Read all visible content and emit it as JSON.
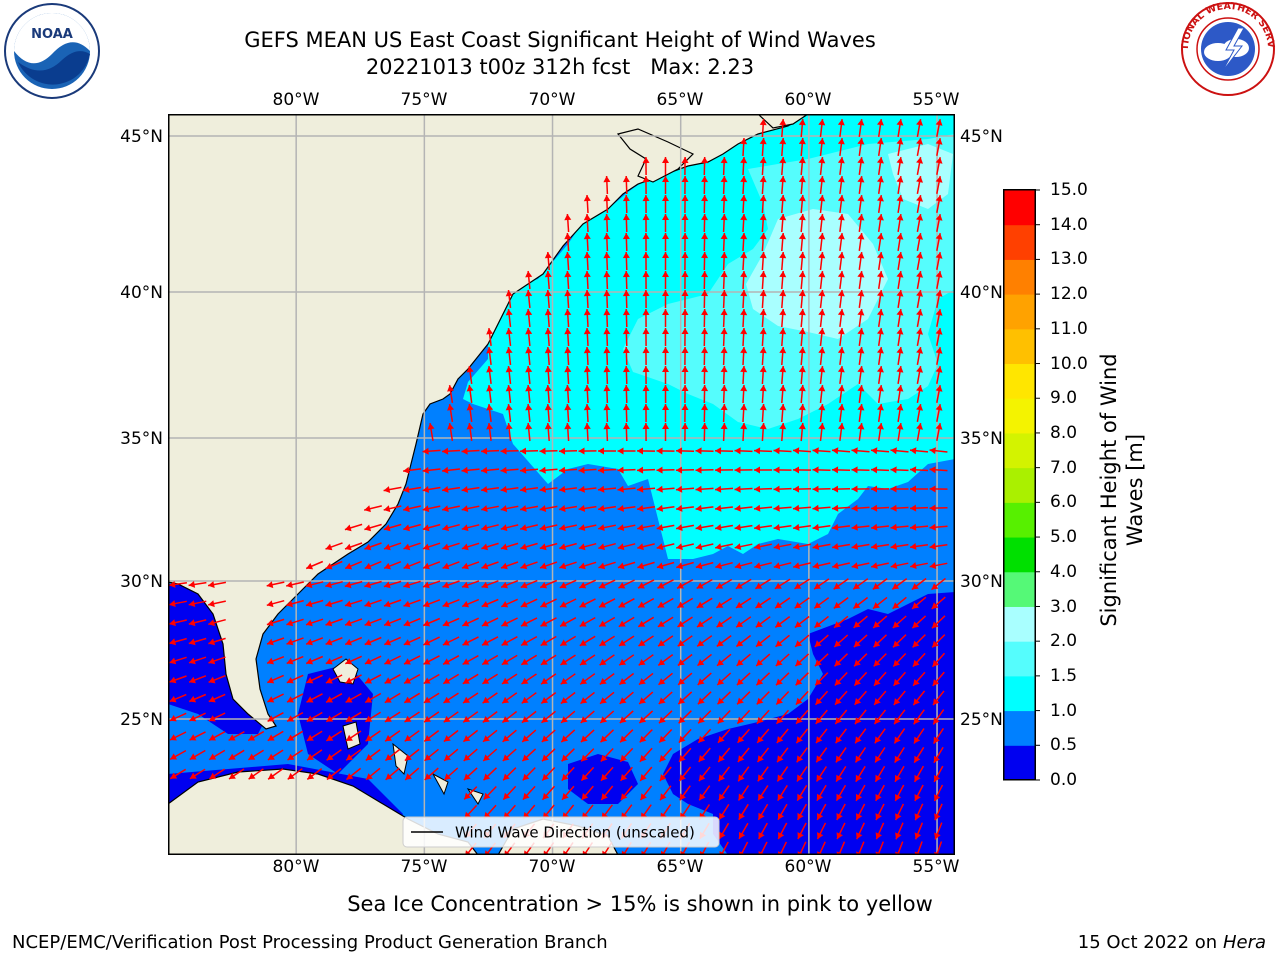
{
  "title": {
    "line1": "GEFS MEAN US East Coast Significant Height of Wind Waves",
    "line2": "20221013 t00z 312h fcst   Max: 2.23"
  },
  "logos": {
    "left": {
      "icon": "noaa-logo",
      "text": "NOAA"
    },
    "right": {
      "icon": "nws-logo",
      "text": "NATIONAL WEATHER SERVICE"
    }
  },
  "map": {
    "lon_ticks": [
      "80°W",
      "75°W",
      "70°W",
      "65°W",
      "60°W",
      "55°W"
    ],
    "lat_ticks": [
      "45°N",
      "40°N",
      "35°N",
      "30°N",
      "25°N"
    ],
    "lon_values": [
      -80,
      -75,
      -70,
      -65,
      -60,
      -55
    ],
    "lat_values": [
      45,
      40,
      35,
      30,
      25
    ],
    "lon_range": [
      -85,
      -54.3
    ],
    "lat_range": [
      20.4,
      46
    ],
    "legend_label": "Wind Wave Direction (unscaled)",
    "colors": {
      "land": "#efeedc",
      "ocean_0_05": "#0000f0",
      "ocean_05_10": "#0080ff",
      "ocean_10_15": "#00ffff",
      "ocean_15_20": "#55fdfd",
      "ocean_20_30": "#a9ffff",
      "arrow": "#ff0000",
      "grid": "#b4b4b4"
    }
  },
  "colorbar": {
    "label": "Significant Height of Wind Waves [m]",
    "ticks": [
      "0.0",
      "0.5",
      "1.0",
      "1.5",
      "2.0",
      "3.0",
      "4.0",
      "5.0",
      "6.0",
      "7.0",
      "8.0",
      "9.0",
      "10.0",
      "11.0",
      "12.0",
      "13.0",
      "14.0",
      "15.0"
    ],
    "colors": [
      "#0000f0",
      "#0080ff",
      "#00ffff",
      "#55fdfd",
      "#a9ffff",
      "#55f977",
      "#00e000",
      "#57f000",
      "#aaf000",
      "#d3f300",
      "#f4f300",
      "#ffe600",
      "#ffc000",
      "#ffa200",
      "#ff8000",
      "#ff4000",
      "#ff0000"
    ]
  },
  "sea_ice_note": "Sea Ice Concentration > 15% is shown in pink to yellow",
  "footer": {
    "left": "NCEP/EMC/Verification Post Processing Product Generation Branch",
    "date": "15 Oct 2022 on ",
    "host": "Hera"
  }
}
